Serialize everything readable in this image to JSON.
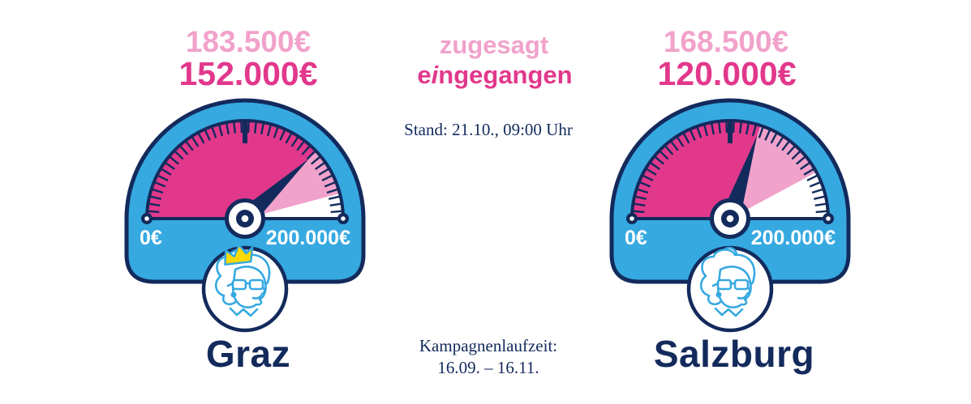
{
  "status_line": "Stand: 21.10., 09:00 Uhr",
  "campaign_period": {
    "line1": "Kampagnenlaufzeit:",
    "line2": "16.09. – 16.11."
  },
  "colors": {
    "body_blue": "#36a9e1",
    "navy": "#132a5c",
    "magenta": "#e2388c",
    "light_pink": "#f1a2cb",
    "crown_yellow": "#ffd903"
  },
  "chart_data": {
    "type": "gauge",
    "unit": "EUR",
    "axis": {
      "min": 0,
      "max": 200000,
      "min_label": "0€",
      "max_label": "200.000€"
    },
    "legend": [
      {
        "name": "zugesagt",
        "meaning": "pledged",
        "color": "#f1a2cb"
      },
      {
        "name": "eingegangen",
        "meaning": "received",
        "color": "#e2388c"
      }
    ],
    "gauges": [
      {
        "label": "Graz",
        "pledged": 183500,
        "received": 152000,
        "pledged_display": "183.500€",
        "received_display": "152.000€",
        "mascot": "granny-with-crown-icon"
      },
      {
        "label": "Salzburg",
        "pledged": 168500,
        "received": 120000,
        "pledged_display": "168.500€",
        "received_display": "120.000€",
        "mascot": "granny-with-bun-icon"
      }
    ],
    "status": "Stand: 21.10., 09:00 Uhr",
    "campaign_period": "Kampagnenlaufzeit: 16.09. – 16.11."
  }
}
